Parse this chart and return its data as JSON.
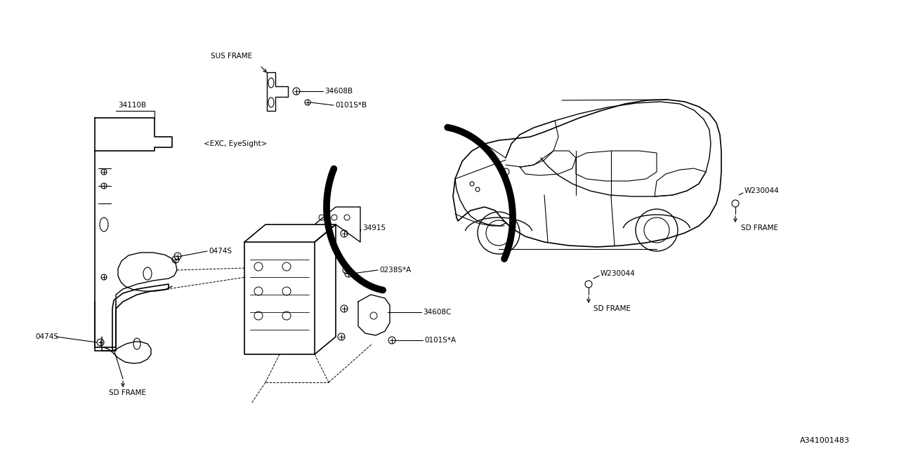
{
  "bg_color": "#ffffff",
  "line_color": "#000000",
  "fig_width": 12.8,
  "fig_height": 6.4,
  "diagram_id": "A341001483",
  "labels": {
    "sus_frame": "SUS FRAME",
    "exc_eyesight": "<EXC, EyeSight>",
    "part_34110B": "34110B",
    "part_0474S_1": "0474S",
    "part_0474S_2": "0474S",
    "part_34608B": "34608B",
    "part_0101SB": "0101S*B",
    "part_34915": "34915",
    "part_0238SA": "0238S*A",
    "part_34608C": "34608C",
    "part_0101SA": "0101S*A",
    "part_W230044_1": "W230044",
    "part_W230044_2": "W230044",
    "sd_frame_1": "SD FRAME",
    "sd_frame_2": "SD FRAME",
    "sd_frame_3": "SD FRAME"
  }
}
